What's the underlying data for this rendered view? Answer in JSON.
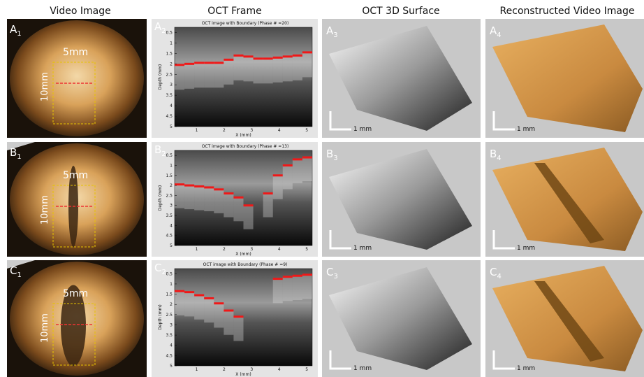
{
  "header": {
    "columns": [
      "Video Image",
      "OCT  Frame",
      "OCT 3D Surface",
      "Reconstructed Video Image"
    ]
  },
  "rows": [
    {
      "video": {
        "label": "A",
        "sub": "1",
        "width": "5mm",
        "height": "10mm"
      },
      "oct": {
        "label": "A",
        "sub": "2",
        "title": "OCT image with Boundary (Phase # =20)",
        "xlabel": "X (mm)",
        "ylabel": "Depth (mm)",
        "xlim": [
          0.2,
          5.2
        ],
        "ylim": [
          0.25,
          5
        ],
        "xticks": [
          1,
          2,
          3,
          4,
          5
        ],
        "yticks": [
          0.5,
          1,
          1.5,
          2,
          2.5,
          3,
          3.5,
          4,
          4.5,
          5
        ],
        "boundary": [
          2.05,
          2.0,
          1.95,
          1.95,
          1.95,
          1.8,
          1.6,
          1.65,
          1.75,
          1.75,
          1.7,
          1.65,
          1.6,
          1.45
        ]
      },
      "surface": {
        "label": "A",
        "sub": "3",
        "scale": "1 mm"
      },
      "recon": {
        "label": "A",
        "sub": "4",
        "scale": "1 mm"
      }
    },
    {
      "video": {
        "label": "B",
        "sub": "1",
        "width": "5mm",
        "height": "10mm"
      },
      "oct": {
        "label": "B",
        "sub": "2",
        "title": "OCT image with Boundary (Phase # =13)",
        "xlabel": "X (mm)",
        "ylabel": "Depth (mm)",
        "xlim": [
          0.2,
          5.2
        ],
        "ylim": [
          0.25,
          5
        ],
        "xticks": [
          1,
          2,
          3,
          4,
          5
        ],
        "yticks": [
          0.5,
          1,
          1.5,
          2,
          2.5,
          3,
          3.5,
          4,
          4.5,
          5
        ],
        "boundary": [
          1.95,
          2.0,
          2.05,
          2.1,
          2.2,
          2.4,
          2.6,
          3.0,
          null,
          2.4,
          1.5,
          1.0,
          0.7,
          0.6
        ]
      },
      "surface": {
        "label": "B",
        "sub": "3",
        "scale": "1 mm"
      },
      "recon": {
        "label": "B",
        "sub": "4",
        "scale": "1 mm"
      }
    },
    {
      "video": {
        "label": "C",
        "sub": "1",
        "width": "5mm",
        "height": "10mm"
      },
      "oct": {
        "label": "C",
        "sub": "2",
        "title": "OCT image with Boundary (Phase # =9)",
        "xlabel": "X (mm)",
        "ylabel": "Depth (mm)",
        "xlim": [
          0.2,
          5.2
        ],
        "ylim": [
          0.25,
          5
        ],
        "xticks": [
          1,
          2,
          3,
          4,
          5
        ],
        "yticks": [
          0.5,
          1,
          1.5,
          2,
          2.5,
          3,
          3.5,
          4,
          4.5,
          5
        ],
        "boundary": [
          1.35,
          1.4,
          1.55,
          1.7,
          1.95,
          2.3,
          2.6,
          null,
          null,
          null,
          0.75,
          0.65,
          0.6,
          0.55
        ]
      },
      "surface": {
        "label": "C",
        "sub": "3",
        "scale": "1 mm"
      },
      "recon": {
        "label": "C",
        "sub": "4",
        "scale": "1 mm"
      }
    }
  ]
}
